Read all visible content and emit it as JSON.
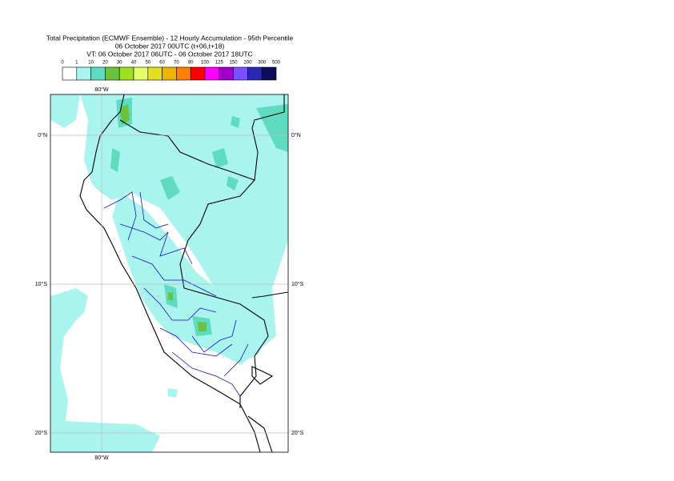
{
  "title": [
    "Total Precipitation (ECMWF Ensemble) - 12 Hourly Accumulation - 95th Percentile",
    "06 October 2017 00UTC (t+06,t+18)",
    "VT: 06 October 2017 06UTC - 06 October 2017 18UTC"
  ],
  "legend": {
    "labels": [
      0,
      1,
      10,
      20,
      30,
      40,
      50,
      60,
      70,
      80,
      100,
      125,
      150,
      200,
      300,
      500
    ],
    "colors": [
      "#ffffff",
      "#aaf4f0",
      "#5fdcc0",
      "#6cc23c",
      "#9de01e",
      "#e4ff6a",
      "#e0e020",
      "#f0b400",
      "#ff8000",
      "#ff0000",
      "#ff00ff",
      "#a000c8",
      "#7850ff",
      "#2828b4",
      "#0c0c5a"
    ]
  },
  "map": {
    "lon_labels": [
      "80°W"
    ],
    "lat_labels": [
      "0°N",
      "10°S",
      "20°S"
    ]
  }
}
